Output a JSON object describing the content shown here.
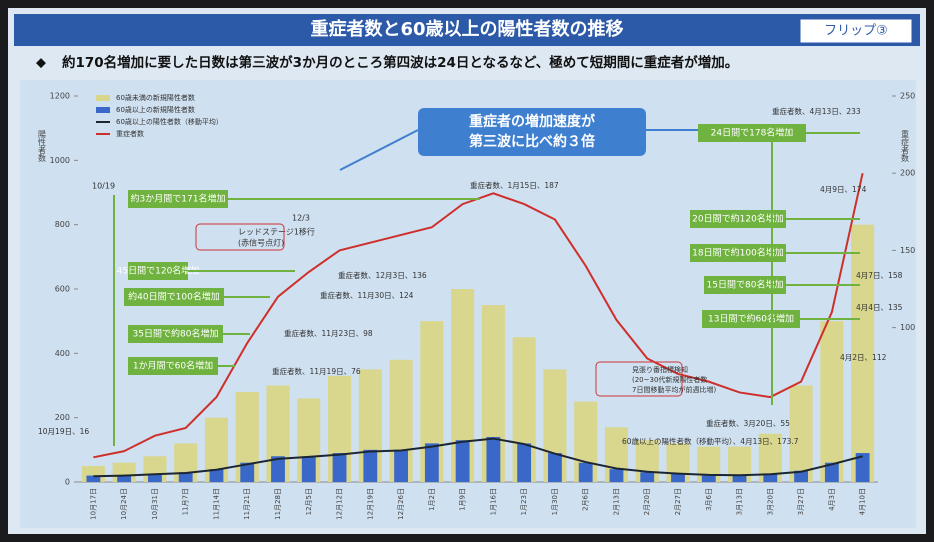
{
  "chart_data": {
    "type": "bar-line",
    "title": "重症者数と60歳以上の陽性者数の推移",
    "flip_label": "フリップ③",
    "subtitle": "約170名増加に要した日数は第三波が3か月のところ第四波は24日となるなど、極めて短期間に重症者が増加。",
    "y_label": "陽性者数",
    "y2_label": "重症者数",
    "highlight": [
      "重症者の増加速度が",
      "第三波に比べ約３倍"
    ],
    "categories": [
      "10月17日",
      "10月24日",
      "10月31日",
      "11月7日",
      "11月14日",
      "11月21日",
      "11月28日",
      "12月5日",
      "12月12日",
      "12月19日",
      "12月26日",
      "1月2日",
      "1月9日",
      "1月16日",
      "1月23日",
      "1月30日",
      "2月6日",
      "2月13日",
      "2月20日",
      "2月27日",
      "3月6日",
      "3月13日",
      "3月20日",
      "3月27日",
      "4月3日",
      "4月10日"
    ],
    "series": [
      {
        "name": "60歳未満の新規陽性者数",
        "kind": "bar",
        "color": "#d9d68e",
        "values": [
          50,
          60,
          80,
          120,
          200,
          280,
          300,
          260,
          330,
          350,
          380,
          500,
          600,
          550,
          450,
          350,
          250,
          170,
          130,
          120,
          110,
          110,
          150,
          300,
          500,
          800
        ]
      },
      {
        "name": "60歳以上の新規陽性者数",
        "kind": "bar",
        "color": "#3a68c8",
        "values": [
          20,
          20,
          25,
          30,
          40,
          60,
          80,
          80,
          90,
          100,
          100,
          120,
          130,
          140,
          120,
          90,
          60,
          40,
          30,
          25,
          20,
          20,
          25,
          35,
          60,
          90
        ]
      },
      {
        "name": "60歳以上の陽性者数（移動平均）",
        "kind": "line",
        "color": "#1c2633",
        "values": [
          18,
          20,
          24,
          28,
          38,
          55,
          72,
          78,
          85,
          95,
          98,
          110,
          125,
          135,
          118,
          88,
          62,
          42,
          32,
          26,
          22,
          21,
          24,
          32,
          55,
          80
        ]
      },
      {
        "name": "重症者数",
        "kind": "line",
        "axis": "y2",
        "color": "#cf2f2a",
        "values": [
          16,
          20,
          30,
          35,
          55,
          90,
          120,
          136,
          150,
          155,
          160,
          165,
          180,
          187,
          180,
          170,
          140,
          105,
          80,
          70,
          65,
          58,
          55,
          65,
          110,
          200
        ]
      }
    ],
    "ylim": [
      0,
      1200
    ],
    "yticks": [
      0,
      200,
      400,
      600,
      800,
      1000,
      1200
    ],
    "y2lim": [
      0,
      250
    ],
    "y2ticks": [
      100,
      150,
      200,
      250
    ],
    "callouts_left": [
      "約3か月間で171名増加",
      "45日間で120名増加",
      "約40日間で100名増加",
      "35日間で約80名増加",
      "1か月間で60名増加"
    ],
    "callouts_right": [
      "24日間で178名増加",
      "20日間で約120名増加",
      "18日間で約100名増加",
      "15日間で80名増加",
      "13日間で約60名増加"
    ],
    "notes": [
      "10/19",
      "12/3",
      "レッドステージ1移行",
      "(赤信号点灯)",
      "見張り番指標検知",
      "(20~30代新規陽性者数",
      "7日間移動平均が前週比増)"
    ],
    "annotations": [
      "10月19日、16",
      "重症者数、11月19日、76",
      "重症者数、11月23日、98",
      "重症者数、11月30日、124",
      "重症者数、12月3日、136",
      "重症者数、1月15日、187",
      "重症者数、3月20日、55",
      "重症者数、4月13日、233",
      "4月9日、174",
      "4月7日、158",
      "4月4日、135",
      "4月2日、112",
      "60歳以上の陽性者数（移動平均）、4月13日、173.7"
    ]
  }
}
